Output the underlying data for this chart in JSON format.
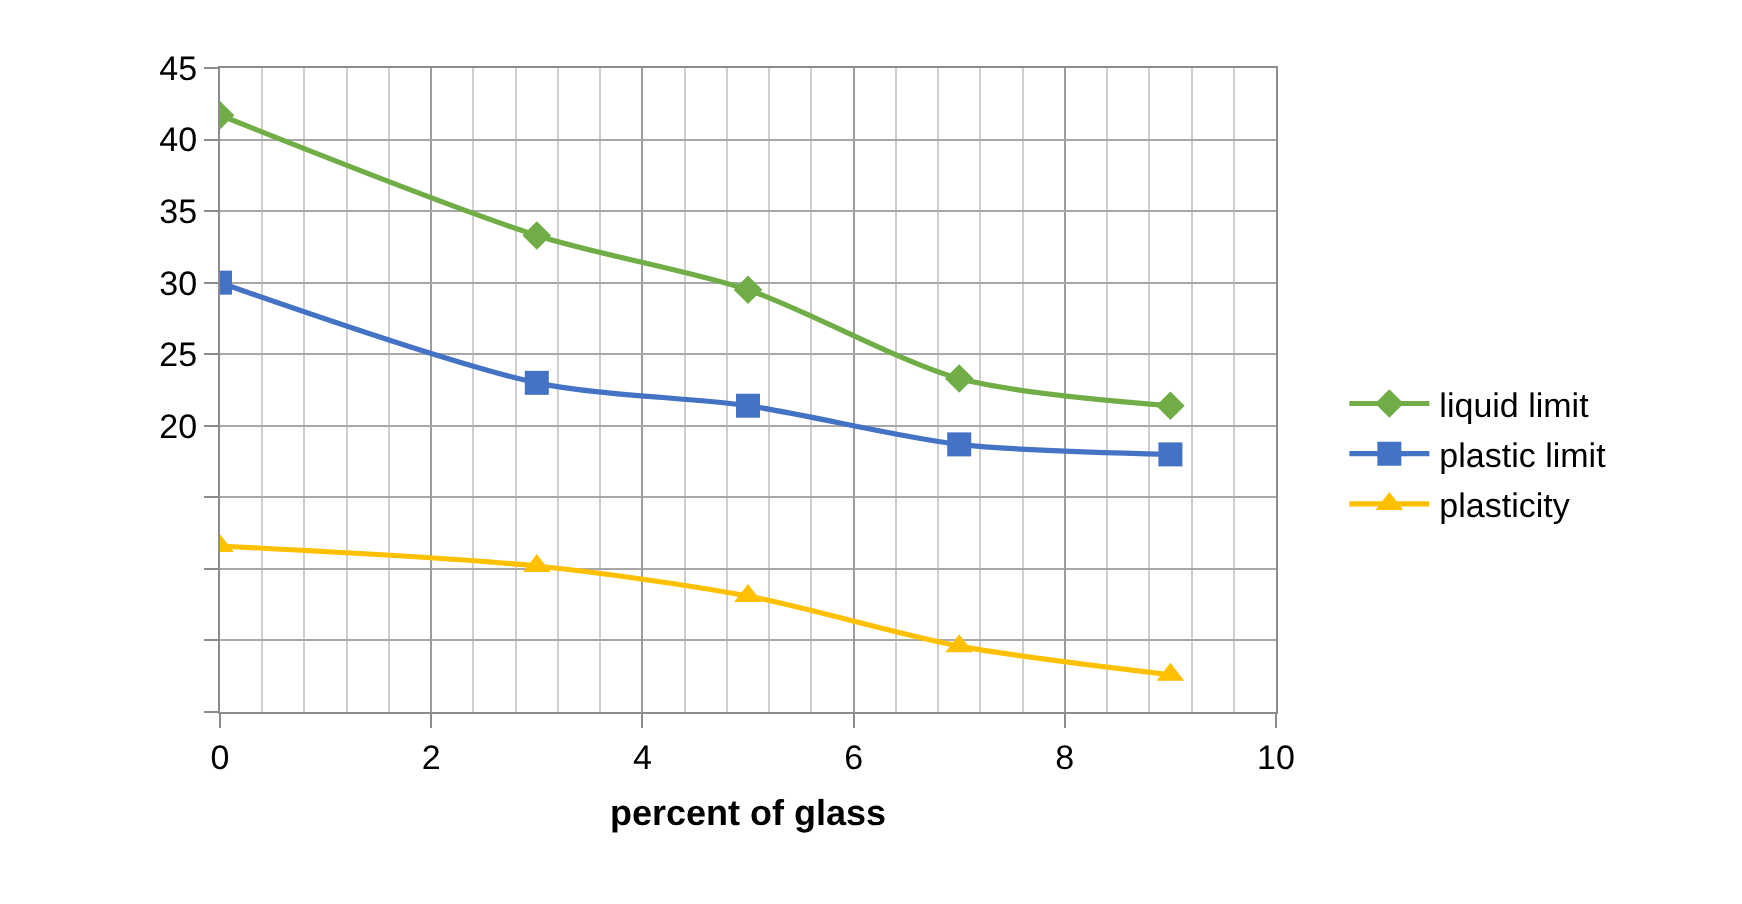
{
  "chart_data": {
    "type": "line",
    "xlabel": "percent of glass",
    "x": [
      0,
      3,
      5,
      7,
      9
    ],
    "series": [
      {
        "name": "liquid limit",
        "color": "#70ad47",
        "marker": "diamond",
        "values": [
          41.7,
          33.3,
          29.5,
          23.3,
          21.4
        ]
      },
      {
        "name": "plastic limit",
        "color": "#4472c4",
        "marker": "square",
        "values": [
          30.0,
          23.0,
          21.4,
          18.7,
          18.0
        ]
      },
      {
        "name": "plasticity",
        "color": "#ffc000",
        "marker": "triangle",
        "values": [
          11.6,
          10.2,
          8.1,
          4.6,
          2.6
        ]
      }
    ],
    "xlim": [
      0,
      10
    ],
    "xticks": [
      0,
      {
        "value": 0.4,
        "label": null
      },
      {
        "value": 0.8,
        "label": null
      },
      {
        "value": 1.2,
        "label": null
      },
      {
        "value": 1.6,
        "label": null
      },
      2,
      {
        "value": 2.4,
        "label": null
      },
      {
        "value": 2.8,
        "label": null
      },
      {
        "value": 3.2,
        "label": null
      },
      {
        "value": 3.6,
        "label": null
      },
      4,
      {
        "value": 4.4,
        "label": null
      },
      {
        "value": 4.8,
        "label": null
      },
      {
        "value": 5.2,
        "label": null
      },
      {
        "value": 5.6,
        "label": null
      },
      6,
      {
        "value": 6.4,
        "label": null
      },
      {
        "value": 6.8,
        "label": null
      },
      {
        "value": 7.2,
        "label": null
      },
      {
        "value": 7.6,
        "label": null
      },
      8,
      {
        "value": 8.4,
        "label": null
      },
      {
        "value": 8.8,
        "label": null
      },
      {
        "value": 9.2,
        "label": null
      },
      {
        "value": 9.6,
        "label": null
      },
      10
    ],
    "ylim": [
      0,
      45
    ],
    "yticks": [
      {
        "value": 0,
        "label": null
      },
      {
        "value": 5,
        "label": null
      },
      {
        "value": 10,
        "label": null
      },
      {
        "value": 15,
        "label": null
      },
      20,
      25,
      30,
      35,
      40,
      45
    ],
    "grid": true,
    "legend": "right"
  }
}
